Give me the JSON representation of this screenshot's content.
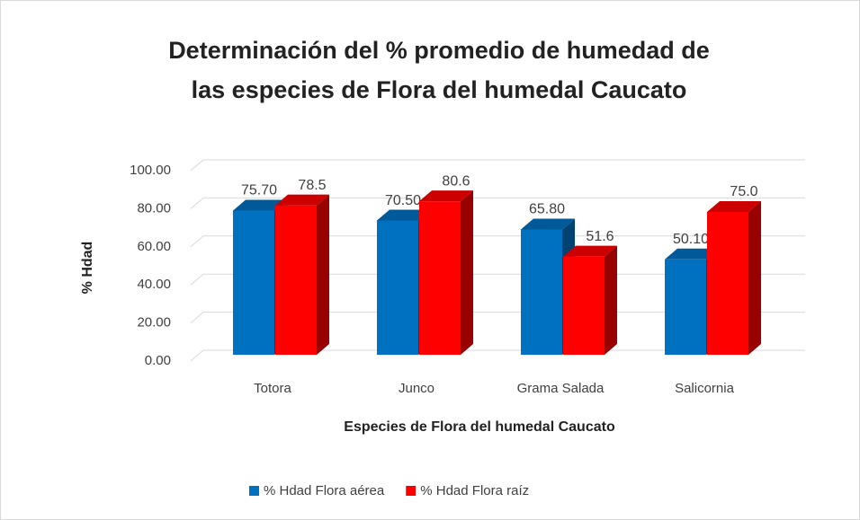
{
  "chart_data": {
    "type": "bar3d",
    "title": [
      "Determinación del % promedio de humedad de",
      "las especies de Flora del humedal Caucato"
    ],
    "x_label": "Especies de Flora del humedal Caucato",
    "y_label": "% Hdad",
    "categories": [
      "Totora",
      "Junco",
      "Grama Salada",
      "Salicornia"
    ],
    "series": [
      {
        "name": "% Hdad Flora aérea",
        "color": "#0070c0",
        "values": [
          75.7,
          70.5,
          65.8,
          50.1
        ],
        "value_labels": [
          "75.70",
          "70.50",
          "65.80",
          "50.10"
        ]
      },
      {
        "name": "% Hdad Flora raíz",
        "color": "#ff0000",
        "values": [
          78.5,
          80.6,
          51.6,
          75.0
        ],
        "value_labels": [
          "78.5",
          "80.6",
          "51.6",
          "75.0"
        ]
      }
    ],
    "ylim": [
      0,
      100
    ],
    "yticks": [
      {
        "value": 0,
        "label": "0.00"
      },
      {
        "value": 20,
        "label": "20.00"
      },
      {
        "value": 40,
        "label": "40.00"
      },
      {
        "value": 60,
        "label": "60.00"
      },
      {
        "value": 80,
        "label": "80.00"
      },
      {
        "value": 100,
        "label": "100.00"
      }
    ],
    "grid": true,
    "legend": "bottom"
  }
}
